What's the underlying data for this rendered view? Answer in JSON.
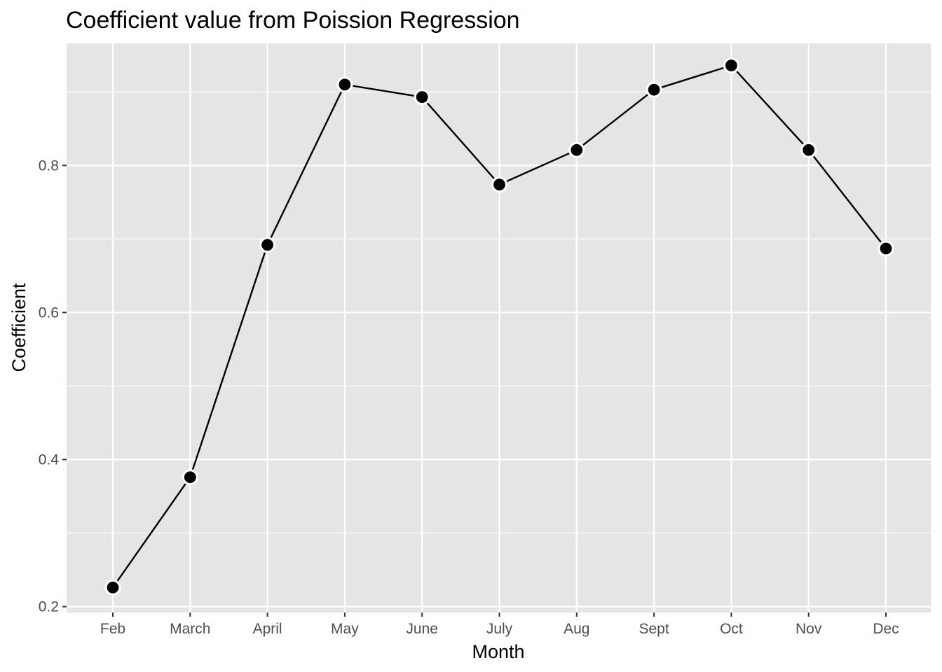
{
  "chart_data": {
    "type": "line",
    "title": "Coefficient value from Poission Regression",
    "xlabel": "Month",
    "ylabel": "Coefficient",
    "categories": [
      "Feb",
      "March",
      "April",
      "May",
      "June",
      "July",
      "Aug",
      "Sept",
      "Oct",
      "Nov",
      "Dec"
    ],
    "series": [
      {
        "values": [
          0.226,
          0.376,
          0.692,
          0.91,
          0.893,
          0.774,
          0.821,
          0.903,
          0.936,
          0.821,
          0.687
        ]
      }
    ],
    "ylim": [
      0.192,
      0.966
    ],
    "yticks": [
      0.2,
      0.4,
      0.6,
      0.8
    ],
    "ytick_labels": [
      "0.2",
      "0.4",
      "0.6",
      "0.8"
    ],
    "grid": true,
    "legend": "none",
    "colors": {
      "panel_background": "#e5e5e5",
      "grid": "#ffffff",
      "line": "#000000",
      "point_fill": "#000000",
      "point_outline": "#ffffff",
      "tick_text": "#4d4d4d",
      "tick_mark": "#333333"
    }
  }
}
